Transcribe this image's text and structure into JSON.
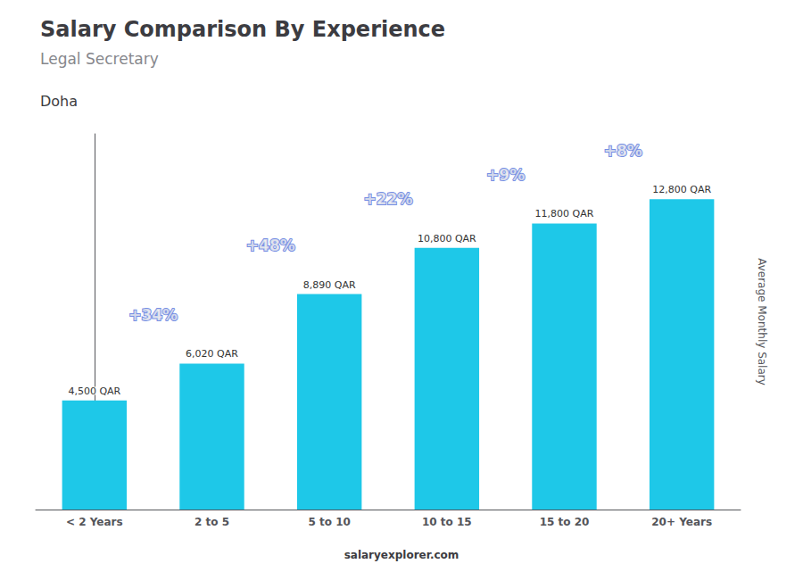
{
  "chart_data": {
    "type": "bar",
    "title": "Salary Comparison By Experience",
    "subtitle": "Legal Secretary",
    "city": "Doha",
    "ylabel": "Average Monthly Salary",
    "categories": [
      "< 2 Years",
      "2 to 5",
      "5 to 10",
      "10 to 15",
      "15 to 20",
      "20+ Years"
    ],
    "values": [
      4500,
      6020,
      8890,
      10800,
      11800,
      12800
    ],
    "value_labels": [
      "4,500 QAR",
      "6,020 QAR",
      "8,890 QAR",
      "10,800 QAR",
      "11,800 QAR",
      "12,800 QAR"
    ],
    "data_labels": true,
    "annotations": [
      "+34%",
      "+48%",
      "+22%",
      "+9%",
      "+8%"
    ],
    "color": "#1EC8E8",
    "ylim": [
      0,
      15500
    ],
    "grid": false,
    "tick_labels": "x",
    "source": "salaryexplorer.com"
  }
}
